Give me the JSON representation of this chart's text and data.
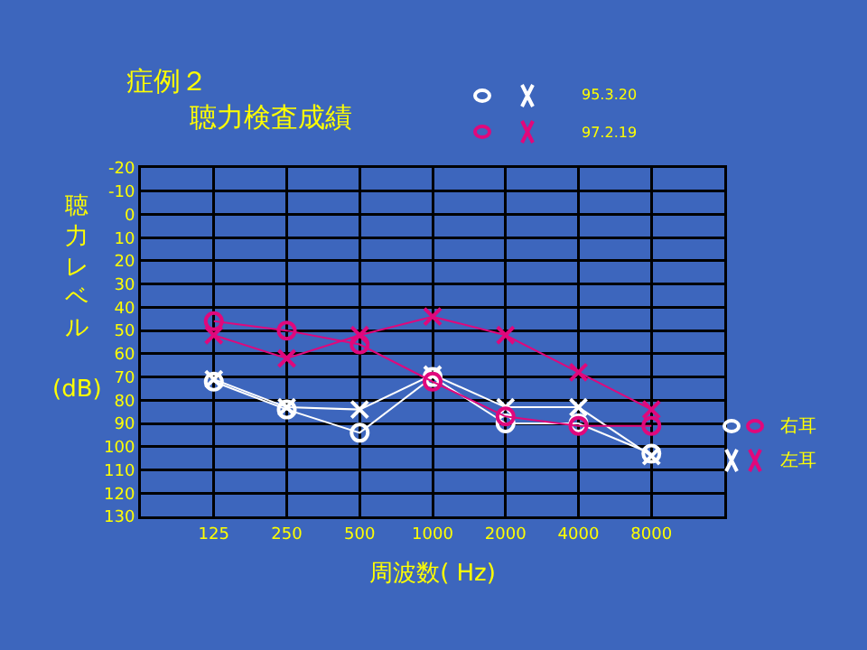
{
  "chart_data": {
    "type": "line",
    "title": "症例２",
    "subtitle": "聴力検査成績",
    "xlabel": "周波数( Hz)",
    "ylabel": "聴力レベル (dB)",
    "categories": [
      "125",
      "250",
      "500",
      "1000",
      "2000",
      "4000",
      "8000"
    ],
    "ylim": [
      130,
      -20
    ],
    "yticks": [
      -20,
      -10,
      0,
      10,
      20,
      30,
      40,
      50,
      60,
      70,
      80,
      90,
      100,
      110,
      120,
      130
    ],
    "grid": true,
    "line_style": "solid",
    "series": [
      {
        "color": "#ffffff",
        "marker": "circle",
        "values": [
          72,
          84,
          94,
          70,
          90,
          90,
          103
        ]
      },
      {
        "color": "#ffffff",
        "marker": "cross",
        "values": [
          71,
          83,
          84,
          69,
          83,
          83,
          104
        ]
      },
      {
        "color": "#e0087c",
        "marker": "circle",
        "values": [
          46,
          50,
          56,
          72,
          87,
          91,
          91
        ]
      },
      {
        "color": "#e0087c",
        "marker": "cross",
        "values": [
          52,
          62,
          52,
          44,
          52,
          68,
          84
        ]
      }
    ],
    "annotations": [
      "95.3.20",
      "97.2.19",
      "右耳",
      "左耳"
    ]
  }
}
